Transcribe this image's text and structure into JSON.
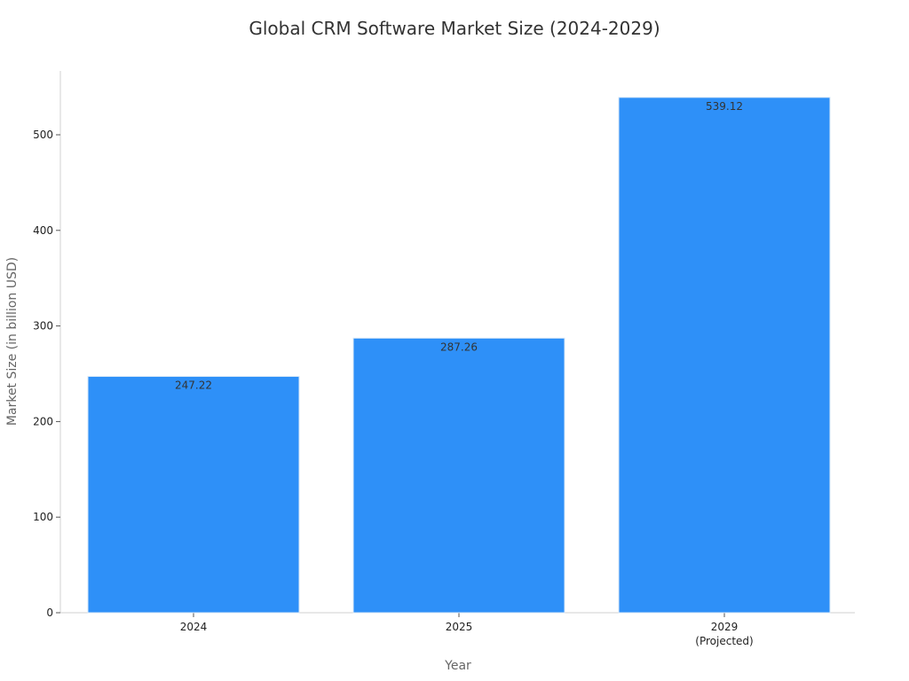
{
  "chart_data": {
    "type": "bar",
    "title": "Global CRM Software Market Size (2024-2029)",
    "xlabel": "Year",
    "ylabel": "Market Size (in billion USD)",
    "categories": [
      [
        "2024"
      ],
      [
        "2025"
      ],
      [
        "2029",
        "(Projected)"
      ]
    ],
    "values": [
      247.22,
      287.26,
      539.12
    ],
    "data_labels": [
      "247.22",
      "287.26",
      "539.12"
    ],
    "ylim": [
      0,
      565
    ],
    "yticks": [
      0,
      100,
      200,
      300,
      400,
      500
    ],
    "grid": false,
    "legend": "none",
    "bar_color": "#2e90f8",
    "bar_edge_color": "#d9e8f7"
  }
}
